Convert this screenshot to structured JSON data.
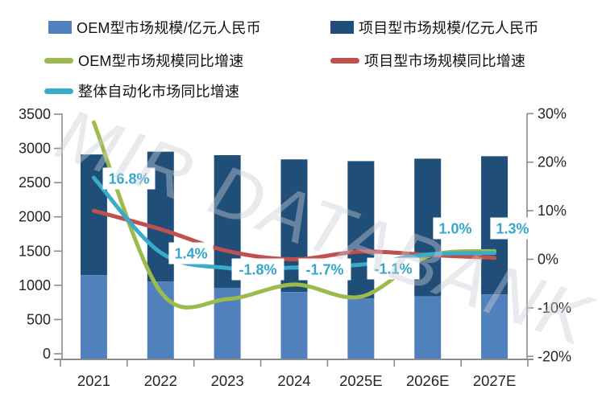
{
  "colors": {
    "oem_bar": "#5081BD",
    "project_bar": "#1F4E79",
    "oem_growth_line": "#9CBB4C",
    "project_growth_line": "#C0504D",
    "overall_growth_line": "#3AABC8",
    "data_label_text": "#35A7C8",
    "axis_line": "#8C8C8C",
    "axis_text": "#262626"
  },
  "legend": {
    "items": [
      {
        "label": "OEM型市场规模/亿元人民币",
        "swatch": "bar",
        "color": "#5081BD"
      },
      {
        "label": "项目型市场规模/亿元人民币",
        "swatch": "bar",
        "color": "#1F4E79"
      },
      {
        "label": "OEM型市场规模同比增速",
        "swatch": "line",
        "color": "#9CBB4C"
      },
      {
        "label": "项目型市场规模同比增速",
        "swatch": "line",
        "color": "#C0504D"
      },
      {
        "label": "整体自动化市场同比增速",
        "swatch": "line",
        "color": "#3AABC8"
      }
    ]
  },
  "chart_data": {
    "type": "combo",
    "categories": [
      "2021",
      "2022",
      "2023",
      "2024",
      "2025E",
      "2026E",
      "2027E"
    ],
    "left_axis": {
      "label_values": [
        3500,
        3000,
        2500,
        2000,
        1500,
        1000,
        500,
        0
      ],
      "min": 0,
      "max": 3500
    },
    "right_axis": {
      "label_values": [
        "30%",
        "20%",
        "10%",
        "0%",
        "-10%",
        "-20%"
      ],
      "min": -20,
      "max": 30
    },
    "series": [
      {
        "name": "OEM型市场规模/亿元人民币",
        "type": "bar",
        "axis": "left",
        "values": [
          1200,
          1110,
          1020,
          960,
          870,
          900,
          925
        ]
      },
      {
        "name": "项目型市场规模/亿元人民币",
        "type": "bar",
        "axis": "left",
        "stacked_on": 0,
        "values": [
          1720,
          1850,
          1890,
          1890,
          1955,
          1960,
          1970
        ]
      },
      {
        "name": "OEM型市场规模同比增速",
        "type": "line",
        "axis": "right",
        "values": [
          28.2,
          -6.7,
          -8.2,
          -5.2,
          -7.7,
          0.6,
          1.7
        ]
      },
      {
        "name": "项目型市场规模同比增速",
        "type": "line",
        "axis": "right",
        "values": [
          10.0,
          6.2,
          1.7,
          0.0,
          1.6,
          0.9,
          0.3
        ]
      },
      {
        "name": "整体自动化市场同比增速",
        "type": "line",
        "axis": "right",
        "values": [
          16.8,
          1.4,
          -1.8,
          -1.7,
          -1.1,
          1.0,
          1.3
        ]
      }
    ],
    "data_labels": {
      "series": "整体自动化市场同比增速",
      "items": [
        {
          "text": "16.8%"
        },
        {
          "text": "1.4%"
        },
        {
          "text": "-1.8%"
        },
        {
          "text": "-1.7%"
        },
        {
          "text": "-1.1%"
        },
        {
          "text": "1.0%"
        },
        {
          "text": "1.3%"
        }
      ]
    },
    "grid": false,
    "legend_position": "top",
    "watermark": "MIR DATABANK"
  }
}
